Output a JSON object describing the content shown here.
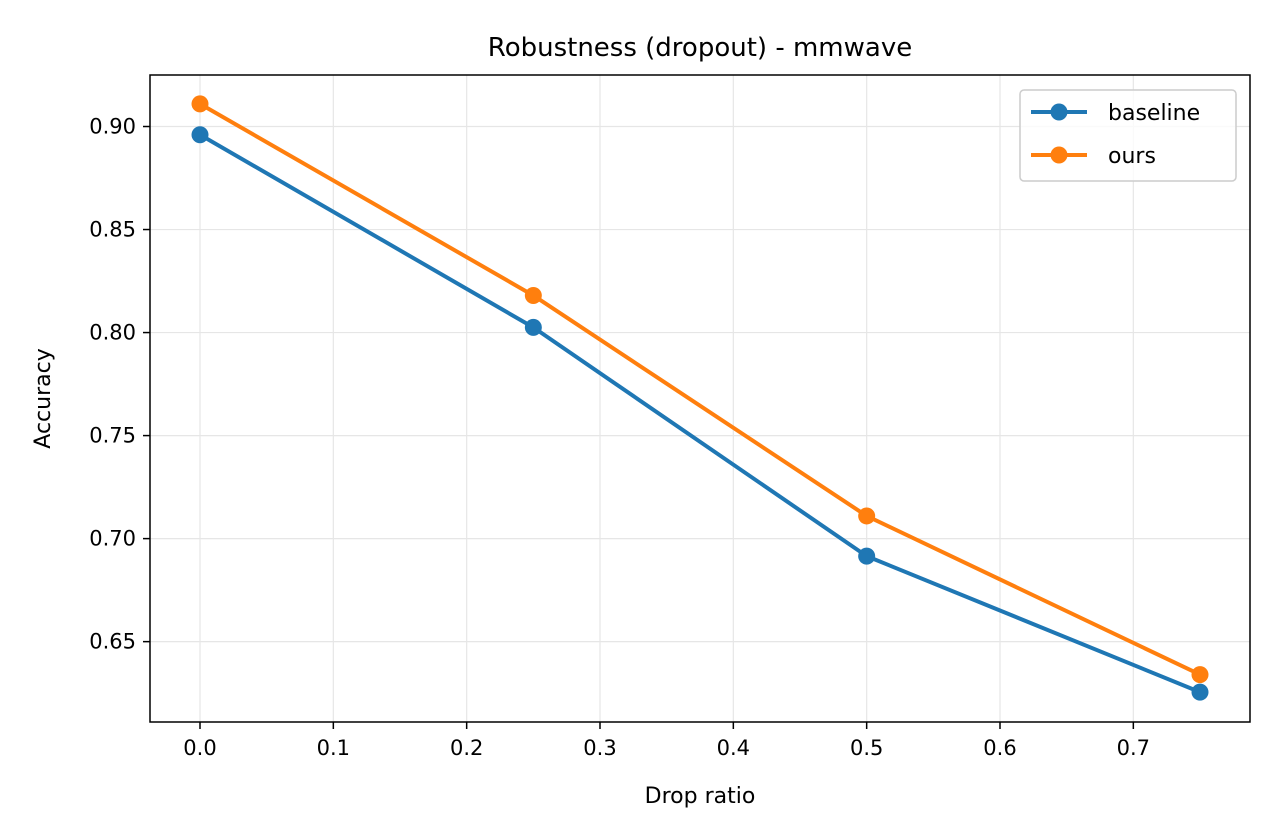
{
  "chart_data": {
    "type": "line",
    "title": "Robustness (dropout) - mmwave",
    "xlabel": "Drop ratio",
    "ylabel": "Accuracy",
    "x": [
      0.0,
      0.25,
      0.5,
      0.75
    ],
    "xlim": [
      -0.0375,
      0.7875
    ],
    "ylim": [
      0.611,
      0.925
    ],
    "xticks": [
      "0.0",
      "0.1",
      "0.2",
      "0.3",
      "0.4",
      "0.5",
      "0.6",
      "0.7"
    ],
    "yticks": [
      "0.65",
      "0.70",
      "0.75",
      "0.80",
      "0.85",
      "0.90"
    ],
    "grid": true,
    "legend_position": "top-right",
    "series": [
      {
        "name": "baseline",
        "color": "#1f77b4",
        "values": [
          0.896,
          0.8025,
          0.6915,
          0.6255
        ]
      },
      {
        "name": "ours",
        "color": "#ff7f0e",
        "values": [
          0.911,
          0.818,
          0.711,
          0.634
        ]
      }
    ]
  }
}
